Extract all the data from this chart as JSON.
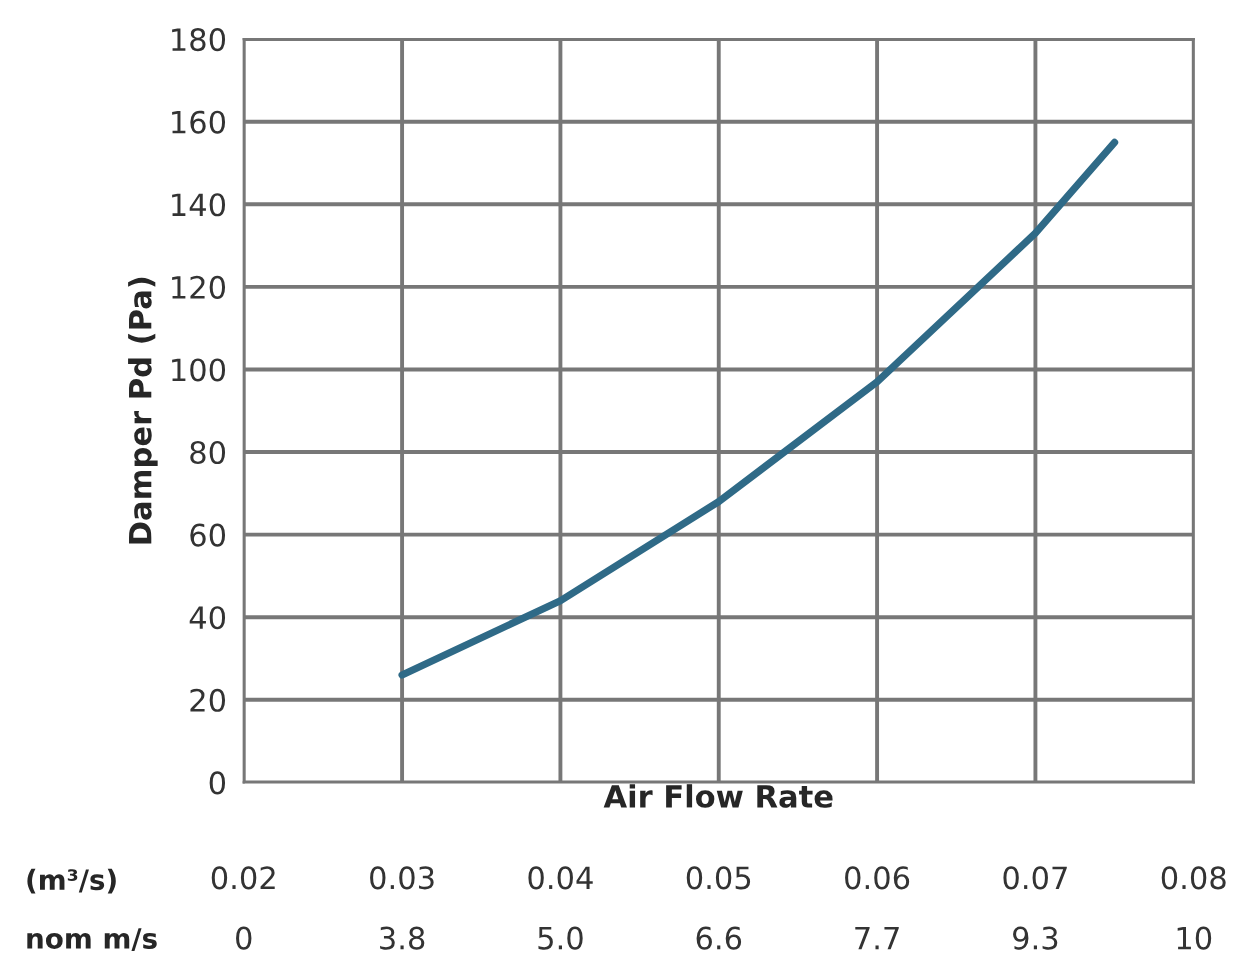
{
  "chart_data": {
    "type": "line",
    "xlabel": "Air Flow Rate",
    "ylabel": "Damper Pd (Pa)",
    "annotations": [
      "(m³/s)",
      "nom m/s",
      "0",
      "3.8",
      "5.0",
      "6.6",
      "7.7",
      "9.3",
      "10"
    ],
    "series": [
      {
        "color": "#2f6a87",
        "x": [
          0.03,
          0.04,
          0.05,
          0.06,
          0.07,
          0.075
        ],
        "values": [
          26,
          44,
          68,
          97,
          133,
          155
        ]
      }
    ],
    "xlim": [
      0.02,
      0.08
    ],
    "xticks": [
      0.02,
      0.03,
      0.04,
      0.05,
      0.06,
      0.07,
      0.08
    ],
    "ylim": [
      0,
      180
    ],
    "yticks": [
      0,
      20,
      40,
      60,
      80,
      100,
      120,
      140,
      160,
      180
    ],
    "grid": true,
    "marker": "none",
    "line_style": "solid",
    "legend": false
  }
}
